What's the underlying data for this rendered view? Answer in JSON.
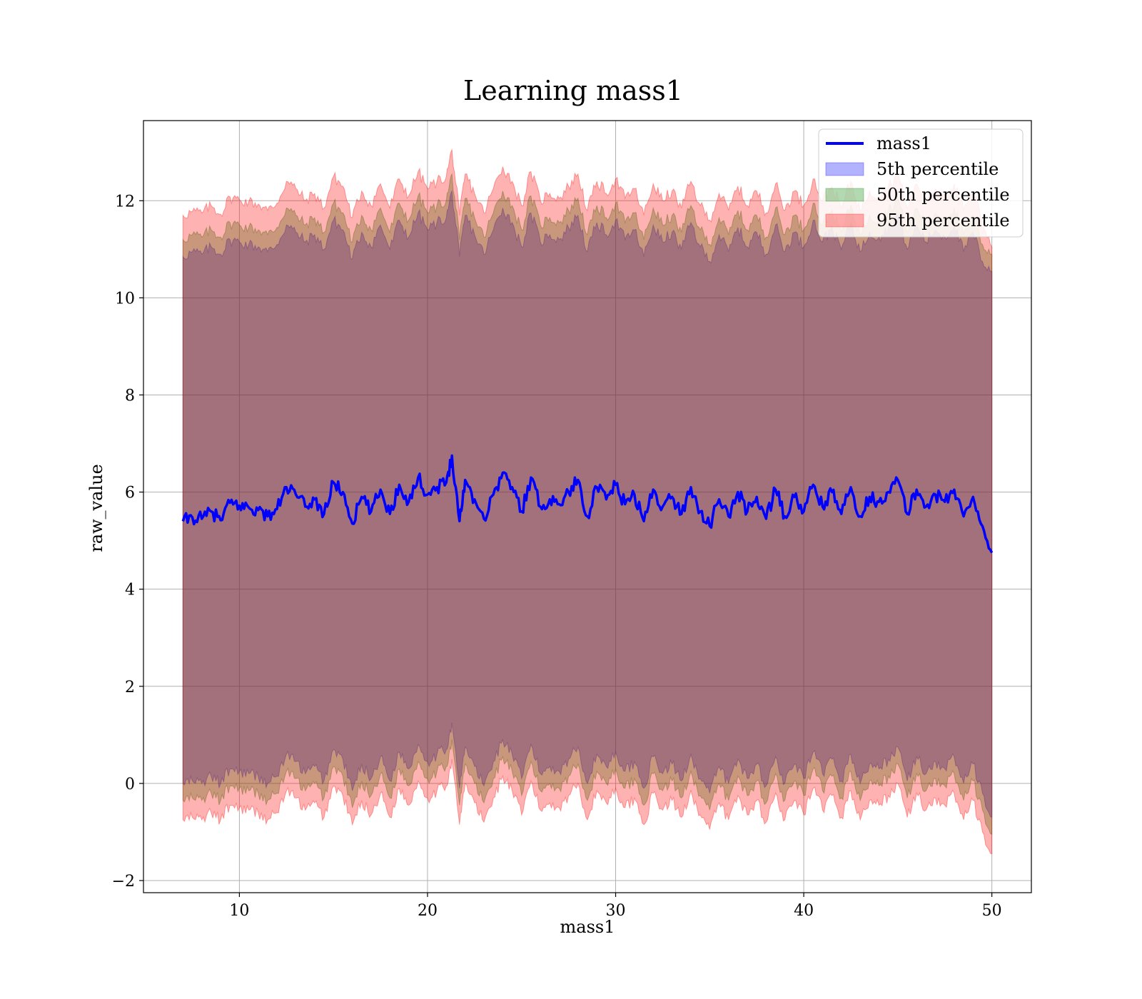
{
  "chart_data": {
    "type": "area",
    "title": "Learning mass1",
    "xlabel": "mass1",
    "ylabel": "raw_value",
    "xlim": [
      4.9,
      52.1
    ],
    "ylim": [
      -2.25,
      13.65
    ],
    "xticks": [
      10,
      20,
      30,
      40,
      50
    ],
    "yticks": [
      -2,
      0,
      2,
      4,
      6,
      8,
      10,
      12
    ],
    "xtick_labels": [
      "10",
      "20",
      "30",
      "40",
      "50"
    ],
    "ytick_labels": [
      "−2",
      "0",
      "2",
      "4",
      "6",
      "8",
      "10",
      "12"
    ],
    "grid": true,
    "legend_position": "upper right",
    "x_range": [
      7.0,
      50.0
    ],
    "series": [
      {
        "name": "mass1",
        "kind": "line",
        "color": "#0000ff",
        "x": [
          7.0,
          7.5,
          8.0,
          8.5,
          9.0,
          9.5,
          10.0,
          10.5,
          11.0,
          11.5,
          12.0,
          12.5,
          13.0,
          13.5,
          14.0,
          14.5,
          15.0,
          15.5,
          16.0,
          16.5,
          17.0,
          17.5,
          18.0,
          18.5,
          19.0,
          19.5,
          20.0,
          20.5,
          21.0,
          21.3,
          21.7,
          22.0,
          22.5,
          23.0,
          23.5,
          24.0,
          24.5,
          25.0,
          25.5,
          26.0,
          26.5,
          27.0,
          27.5,
          28.0,
          28.5,
          29.0,
          29.5,
          30.0,
          30.5,
          31.0,
          31.5,
          32.0,
          32.5,
          33.0,
          33.5,
          34.0,
          34.5,
          35.0,
          35.5,
          36.0,
          36.5,
          37.0,
          37.5,
          38.0,
          38.5,
          39.0,
          39.5,
          40.0,
          40.5,
          41.0,
          41.5,
          42.0,
          42.5,
          43.0,
          43.5,
          44.0,
          44.5,
          45.0,
          45.5,
          46.0,
          46.5,
          47.0,
          47.5,
          48.0,
          48.5,
          49.0,
          49.5,
          50.0
        ],
        "y": [
          5.4,
          5.48,
          5.45,
          5.6,
          5.42,
          5.78,
          5.72,
          5.68,
          5.63,
          5.5,
          5.65,
          6.1,
          5.95,
          5.7,
          5.85,
          5.55,
          6.2,
          6.0,
          5.35,
          5.9,
          5.6,
          6.05,
          5.55,
          6.15,
          5.8,
          6.3,
          5.95,
          6.1,
          6.2,
          6.75,
          5.4,
          6.25,
          5.85,
          5.45,
          5.95,
          6.4,
          6.1,
          5.6,
          6.3,
          5.7,
          5.85,
          5.75,
          6.0,
          6.25,
          5.5,
          6.1,
          5.85,
          6.15,
          5.75,
          5.95,
          5.4,
          6.05,
          5.7,
          5.9,
          5.55,
          6.1,
          5.6,
          5.3,
          5.85,
          5.5,
          6.0,
          5.6,
          5.9,
          5.45,
          6.05,
          5.5,
          5.9,
          5.6,
          6.15,
          5.7,
          6.0,
          5.55,
          6.1,
          5.5,
          5.9,
          5.8,
          6.0,
          6.25,
          5.55,
          6.05,
          5.7,
          5.95,
          5.8,
          6.05,
          5.5,
          5.9,
          5.3,
          4.75
        ]
      },
      {
        "name": "5th percentile",
        "kind": "band",
        "color": "#0000ff",
        "opacity": 0.3,
        "x": [
          7.0,
          7.5,
          8.0,
          8.5,
          9.0,
          9.5,
          10.0,
          10.5,
          11.0,
          11.5,
          12.0,
          12.5,
          13.0,
          13.5,
          14.0,
          14.5,
          15.0,
          15.5,
          16.0,
          16.5,
          17.0,
          17.5,
          18.0,
          18.5,
          19.0,
          19.5,
          20.0,
          20.5,
          21.0,
          21.3,
          21.7,
          22.0,
          22.5,
          23.0,
          23.5,
          24.0,
          24.5,
          25.0,
          25.5,
          26.0,
          26.5,
          27.0,
          27.5,
          28.0,
          28.5,
          29.0,
          29.5,
          30.0,
          30.5,
          31.0,
          31.5,
          32.0,
          32.5,
          33.0,
          33.5,
          34.0,
          34.5,
          35.0,
          35.5,
          36.0,
          36.5,
          37.0,
          37.5,
          38.0,
          38.5,
          39.0,
          39.5,
          40.0,
          40.5,
          41.0,
          41.5,
          42.0,
          42.5,
          43.0,
          43.5,
          44.0,
          44.5,
          45.0,
          45.5,
          46.0,
          46.5,
          47.0,
          47.5,
          48.0,
          48.5,
          49.0,
          49.5,
          50.0
        ],
        "lower": [
          0.0,
          0.05,
          0.0,
          0.15,
          0.0,
          0.3,
          0.25,
          0.2,
          0.15,
          0.0,
          0.15,
          0.6,
          0.45,
          0.2,
          0.35,
          0.05,
          0.7,
          0.5,
          -0.15,
          0.4,
          0.1,
          0.55,
          0.05,
          0.65,
          0.3,
          0.8,
          0.45,
          0.6,
          0.7,
          1.25,
          -0.1,
          0.75,
          0.35,
          -0.05,
          0.45,
          0.9,
          0.6,
          0.1,
          0.8,
          0.2,
          0.35,
          0.25,
          0.5,
          0.75,
          0.0,
          0.6,
          0.35,
          0.65,
          0.25,
          0.45,
          -0.1,
          0.55,
          0.2,
          0.4,
          0.05,
          0.6,
          0.1,
          -0.2,
          0.35,
          0.0,
          0.5,
          0.1,
          0.4,
          -0.05,
          0.55,
          0.0,
          0.4,
          0.1,
          0.65,
          0.2,
          0.5,
          0.05,
          0.6,
          0.0,
          0.4,
          0.3,
          0.5,
          0.75,
          0.05,
          0.55,
          0.2,
          0.45,
          0.3,
          0.55,
          0.0,
          0.4,
          -0.2,
          -0.7
        ],
        "upper": [
          10.85,
          10.95,
          10.9,
          11.05,
          10.9,
          11.2,
          11.15,
          11.1,
          11.05,
          10.95,
          11.1,
          11.5,
          11.35,
          11.15,
          11.3,
          11.0,
          11.6,
          11.4,
          10.8,
          11.35,
          11.05,
          11.5,
          11.0,
          11.6,
          11.25,
          11.75,
          11.4,
          11.55,
          11.65,
          12.2,
          10.85,
          11.7,
          11.3,
          10.9,
          11.4,
          11.85,
          11.55,
          11.05,
          11.75,
          11.15,
          11.3,
          11.2,
          11.45,
          11.7,
          10.95,
          11.55,
          11.3,
          11.6,
          11.2,
          11.4,
          10.85,
          11.5,
          11.15,
          11.35,
          11.0,
          11.55,
          11.05,
          10.75,
          11.3,
          10.95,
          11.45,
          11.05,
          11.35,
          10.9,
          11.5,
          10.95,
          11.35,
          11.05,
          11.6,
          11.15,
          11.45,
          11.0,
          11.55,
          10.95,
          11.35,
          11.25,
          11.45,
          11.7,
          11.0,
          11.5,
          11.15,
          11.4,
          11.25,
          11.5,
          10.95,
          11.35,
          10.75,
          10.55
        ]
      },
      {
        "name": "50th percentile",
        "kind": "band",
        "color": "#008000",
        "opacity": 0.3,
        "x": [
          7.0,
          7.5,
          8.0,
          8.5,
          9.0,
          9.5,
          10.0,
          10.5,
          11.0,
          11.5,
          12.0,
          12.5,
          13.0,
          13.5,
          14.0,
          14.5,
          15.0,
          15.5,
          16.0,
          16.5,
          17.0,
          17.5,
          18.0,
          18.5,
          19.0,
          19.5,
          20.0,
          20.5,
          21.0,
          21.3,
          21.7,
          22.0,
          22.5,
          23.0,
          23.5,
          24.0,
          24.5,
          25.0,
          25.5,
          26.0,
          26.5,
          27.0,
          27.5,
          28.0,
          28.5,
          29.0,
          29.5,
          30.0,
          30.5,
          31.0,
          31.5,
          32.0,
          32.5,
          33.0,
          33.5,
          34.0,
          34.5,
          35.0,
          35.5,
          36.0,
          36.5,
          37.0,
          37.5,
          38.0,
          38.5,
          39.0,
          39.5,
          40.0,
          40.5,
          41.0,
          41.5,
          42.0,
          42.5,
          43.0,
          43.5,
          44.0,
          44.5,
          45.0,
          45.5,
          46.0,
          46.5,
          47.0,
          47.5,
          48.0,
          48.5,
          49.0,
          49.5,
          50.0
        ],
        "lower": [
          -0.35,
          -0.3,
          -0.35,
          -0.2,
          -0.35,
          -0.05,
          -0.1,
          -0.15,
          -0.2,
          -0.35,
          -0.2,
          0.25,
          0.1,
          -0.15,
          0.0,
          -0.3,
          0.35,
          0.15,
          -0.5,
          0.05,
          -0.25,
          0.2,
          -0.3,
          0.3,
          -0.05,
          0.45,
          0.1,
          0.25,
          0.35,
          0.9,
          -0.45,
          0.4,
          0.0,
          -0.4,
          0.1,
          0.55,
          0.25,
          -0.25,
          0.45,
          -0.15,
          0.0,
          -0.1,
          0.15,
          0.4,
          -0.35,
          0.25,
          0.0,
          0.3,
          -0.1,
          0.1,
          -0.45,
          0.2,
          -0.15,
          0.05,
          -0.3,
          0.25,
          -0.25,
          -0.55,
          0.0,
          -0.35,
          0.15,
          -0.25,
          0.05,
          -0.4,
          0.2,
          -0.35,
          0.05,
          -0.25,
          0.3,
          -0.15,
          0.15,
          -0.3,
          0.25,
          -0.35,
          0.05,
          -0.05,
          0.15,
          0.4,
          -0.3,
          0.2,
          -0.15,
          0.1,
          -0.05,
          0.2,
          -0.35,
          0.05,
          -0.55,
          -1.05
        ],
        "upper": [
          11.2,
          11.3,
          11.25,
          11.4,
          11.25,
          11.55,
          11.5,
          11.45,
          11.4,
          11.3,
          11.45,
          11.85,
          11.7,
          11.5,
          11.65,
          11.35,
          11.95,
          11.75,
          11.15,
          11.7,
          11.4,
          11.85,
          11.35,
          11.95,
          11.6,
          12.1,
          11.75,
          11.9,
          12.0,
          12.55,
          11.2,
          12.05,
          11.65,
          11.25,
          11.75,
          12.2,
          11.9,
          11.4,
          12.1,
          11.5,
          11.65,
          11.55,
          11.8,
          12.05,
          11.3,
          11.9,
          11.65,
          11.95,
          11.55,
          11.75,
          11.2,
          11.85,
          11.5,
          11.7,
          11.35,
          11.9,
          11.4,
          11.1,
          11.65,
          11.3,
          11.8,
          11.4,
          11.7,
          11.25,
          11.85,
          11.3,
          11.7,
          11.4,
          11.95,
          11.5,
          11.8,
          11.35,
          11.9,
          11.3,
          11.7,
          11.6,
          11.8,
          12.05,
          11.35,
          11.85,
          11.5,
          11.75,
          11.6,
          11.85,
          11.3,
          11.7,
          11.1,
          10.9
        ]
      },
      {
        "name": "95th percentile",
        "kind": "band",
        "color": "#ff0000",
        "opacity": 0.3,
        "x": [
          7.0,
          7.5,
          8.0,
          8.5,
          9.0,
          9.5,
          10.0,
          10.5,
          11.0,
          11.5,
          12.0,
          12.5,
          13.0,
          13.5,
          14.0,
          14.5,
          15.0,
          15.5,
          16.0,
          16.5,
          17.0,
          17.5,
          18.0,
          18.5,
          19.0,
          19.5,
          20.0,
          20.5,
          21.0,
          21.3,
          21.7,
          22.0,
          22.5,
          23.0,
          23.5,
          24.0,
          24.5,
          25.0,
          25.5,
          26.0,
          26.5,
          27.0,
          27.5,
          28.0,
          28.5,
          29.0,
          29.5,
          30.0,
          30.5,
          31.0,
          31.5,
          32.0,
          32.5,
          33.0,
          33.5,
          34.0,
          34.5,
          35.0,
          35.5,
          36.0,
          36.5,
          37.0,
          37.5,
          38.0,
          38.5,
          39.0,
          39.5,
          40.0,
          40.5,
          41.0,
          41.5,
          42.0,
          42.5,
          43.0,
          43.5,
          44.0,
          44.5,
          45.0,
          45.5,
          46.0,
          46.5,
          47.0,
          47.5,
          48.0,
          48.5,
          49.0,
          49.5,
          50.0
        ],
        "lower": [
          -0.75,
          -0.7,
          -0.75,
          -0.6,
          -0.75,
          -0.45,
          -0.5,
          -0.55,
          -0.6,
          -0.75,
          -0.6,
          -0.15,
          -0.3,
          -0.55,
          -0.4,
          -0.7,
          -0.05,
          -0.25,
          -0.85,
          -0.35,
          -0.65,
          -0.2,
          -0.7,
          -0.1,
          -0.45,
          0.05,
          -0.3,
          -0.15,
          -0.05,
          0.5,
          -0.85,
          0.0,
          -0.4,
          -0.8,
          -0.3,
          0.15,
          -0.15,
          -0.65,
          0.05,
          -0.55,
          -0.4,
          -0.5,
          -0.25,
          0.0,
          -0.75,
          -0.15,
          -0.4,
          -0.1,
          -0.5,
          -0.3,
          -0.85,
          -0.2,
          -0.55,
          -0.35,
          -0.7,
          -0.15,
          -0.65,
          -0.95,
          -0.4,
          -0.75,
          -0.25,
          -0.65,
          -0.35,
          -0.8,
          -0.2,
          -0.75,
          -0.35,
          -0.65,
          -0.1,
          -0.55,
          -0.25,
          -0.7,
          -0.15,
          -0.75,
          -0.35,
          -0.45,
          -0.25,
          0.0,
          -0.7,
          -0.2,
          -0.55,
          -0.3,
          -0.45,
          -0.2,
          -0.75,
          -0.35,
          -1.0,
          -1.45
        ]
      }
    ]
  },
  "legend": [
    {
      "label": "mass1",
      "kind": "line",
      "color": "#0000ff"
    },
    {
      "label": "5th percentile",
      "kind": "band",
      "color": "#0000ff"
    },
    {
      "label": "50th percentile",
      "kind": "band",
      "color": "#008000"
    },
    {
      "label": "95th percentile",
      "kind": "band",
      "color": "#ff0000"
    }
  ]
}
